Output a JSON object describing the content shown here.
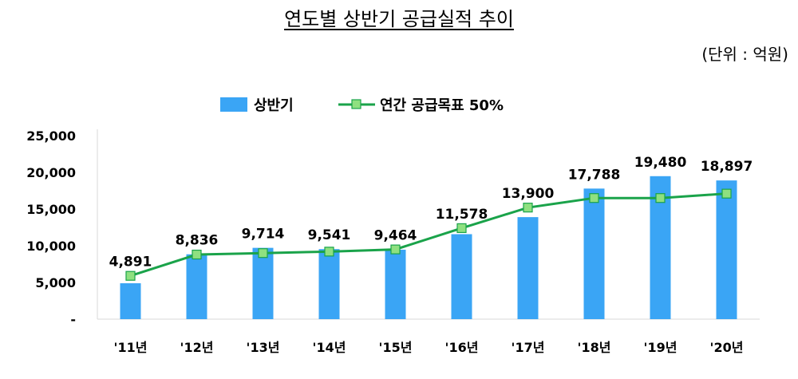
{
  "header": {
    "title": "연도별 상반기 공급실적 추이",
    "unit": "(단위 : 억원)"
  },
  "chart_data": {
    "type": "bar",
    "categories": [
      "'11년",
      "'12년",
      "'13년",
      "'14년",
      "'15년",
      "'16년",
      "'17년",
      "'18년",
      "'19년",
      "'20년"
    ],
    "series": [
      {
        "name": "상반기",
        "type": "bar",
        "color": "#3aa5f5",
        "values": [
          4891,
          8836,
          9714,
          9541,
          9464,
          11578,
          13900,
          17788,
          19480,
          18897
        ],
        "labels": [
          "4,891",
          "8,836",
          "9,714",
          "9,541",
          "9,464",
          "11,578",
          "13,900",
          "17,788",
          "19,480",
          "18,897"
        ]
      },
      {
        "name": "연간 공급목표 50%",
        "type": "line",
        "color": "#1aa34a",
        "marker_color": "#8fe080",
        "values": [
          5900,
          8800,
          9000,
          9200,
          9500,
          12400,
          15200,
          16500,
          16500,
          17100
        ]
      }
    ],
    "y_ticks": [
      0,
      5000,
      10000,
      15000,
      20000,
      25000
    ],
    "y_tick_labels": [
      "-",
      "5,000",
      "10,000",
      "15,000",
      "20,000",
      "25,000"
    ],
    "ylim": [
      0,
      25000
    ],
    "grid": false,
    "legend": "top-center",
    "xlabel": "",
    "ylabel": ""
  }
}
